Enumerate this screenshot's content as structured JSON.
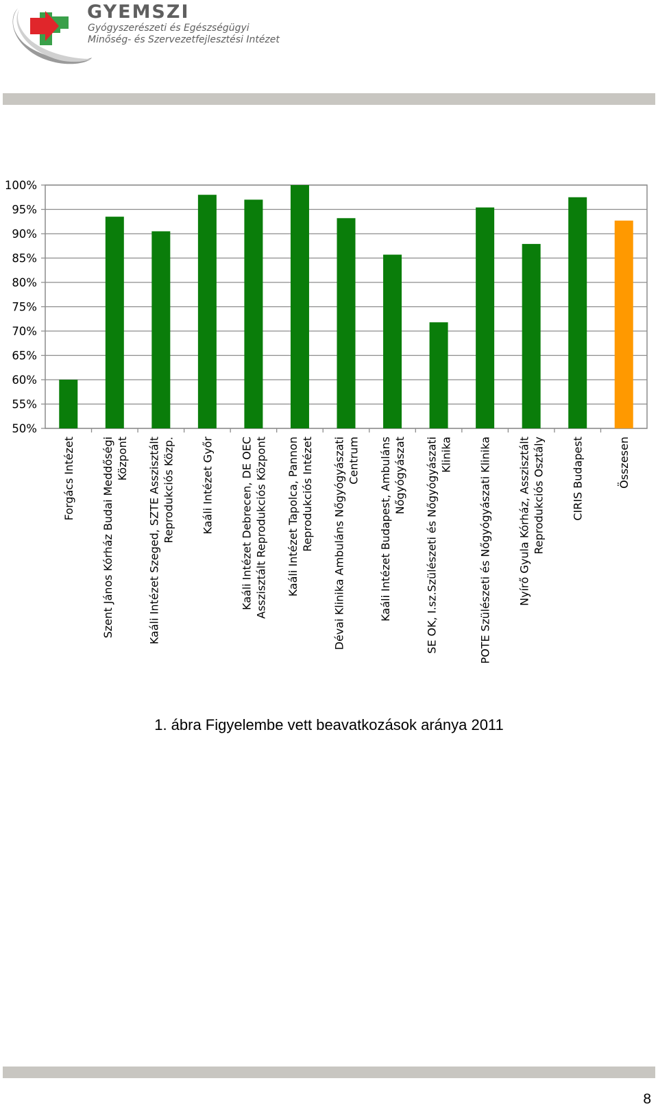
{
  "header": {
    "org_name": "GYEMSZI",
    "org_line1": "Gyógyszerészeti és Egészségügyi",
    "org_line2": "Minőség- és Szervezetfejlesztési Intézet",
    "logo_icon": "gyemszi-cross-logo-icon",
    "colors": {
      "cross_red": "#e0262b",
      "cross_green": "#3aa04a",
      "swoosh_gray": "#8c8c8c"
    }
  },
  "chart_data": {
    "type": "bar",
    "ylim": [
      0.5,
      1.0
    ],
    "yticks": [
      "50%",
      "55%",
      "60%",
      "65%",
      "70%",
      "75%",
      "80%",
      "85%",
      "90%",
      "95%",
      "100%"
    ],
    "grid": true,
    "legend": "none",
    "colors": {
      "bar": "#0a7d0a",
      "total_bar": "#ff9900",
      "grid": "#8c8c8c"
    },
    "categories": [
      [
        "Forgács Intézet"
      ],
      [
        "Szent János Kórház Budai Meddőségi",
        "Központ"
      ],
      [
        "Kaáli Intézet Szeged, SZTE Asszisztált",
        "Reprodukciós Közp."
      ],
      [
        "Kaáli Intézet Győr"
      ],
      [
        "Kaáli Intézet Debrecen, DE OEC",
        "Asszisztált Reprodukciós Központ"
      ],
      [
        "Kaáli Intézet Tapolca, Pannon",
        "Reprodukciós Intézet"
      ],
      [
        "Dévai Klinika Ambuláns Nőgyógyászati",
        "Centrum"
      ],
      [
        "Kaáli Intézet Budapest, Ambuláns",
        "Nőgyógyászat"
      ],
      [
        "SE OK, I.sz.Szülészeti és Nőgyógyászati",
        "Klinika"
      ],
      [
        "POTE Szülészeti és Nőgyógyászati Klinika"
      ],
      [
        "Nyírő Gyula Kórház, Asszisztált",
        "Reprodukciós Osztály"
      ],
      [
        "CIRIS Budapest"
      ],
      [
        "Összesen"
      ]
    ],
    "values": [
      0.6,
      0.935,
      0.905,
      0.98,
      0.97,
      1.0,
      0.932,
      0.857,
      0.718,
      0.954,
      0.879,
      0.975,
      0.927
    ],
    "highlight_index": 12
  },
  "caption": "1. ábra Figyelembe vett beavatkozások aránya 2011",
  "page_number": "8"
}
